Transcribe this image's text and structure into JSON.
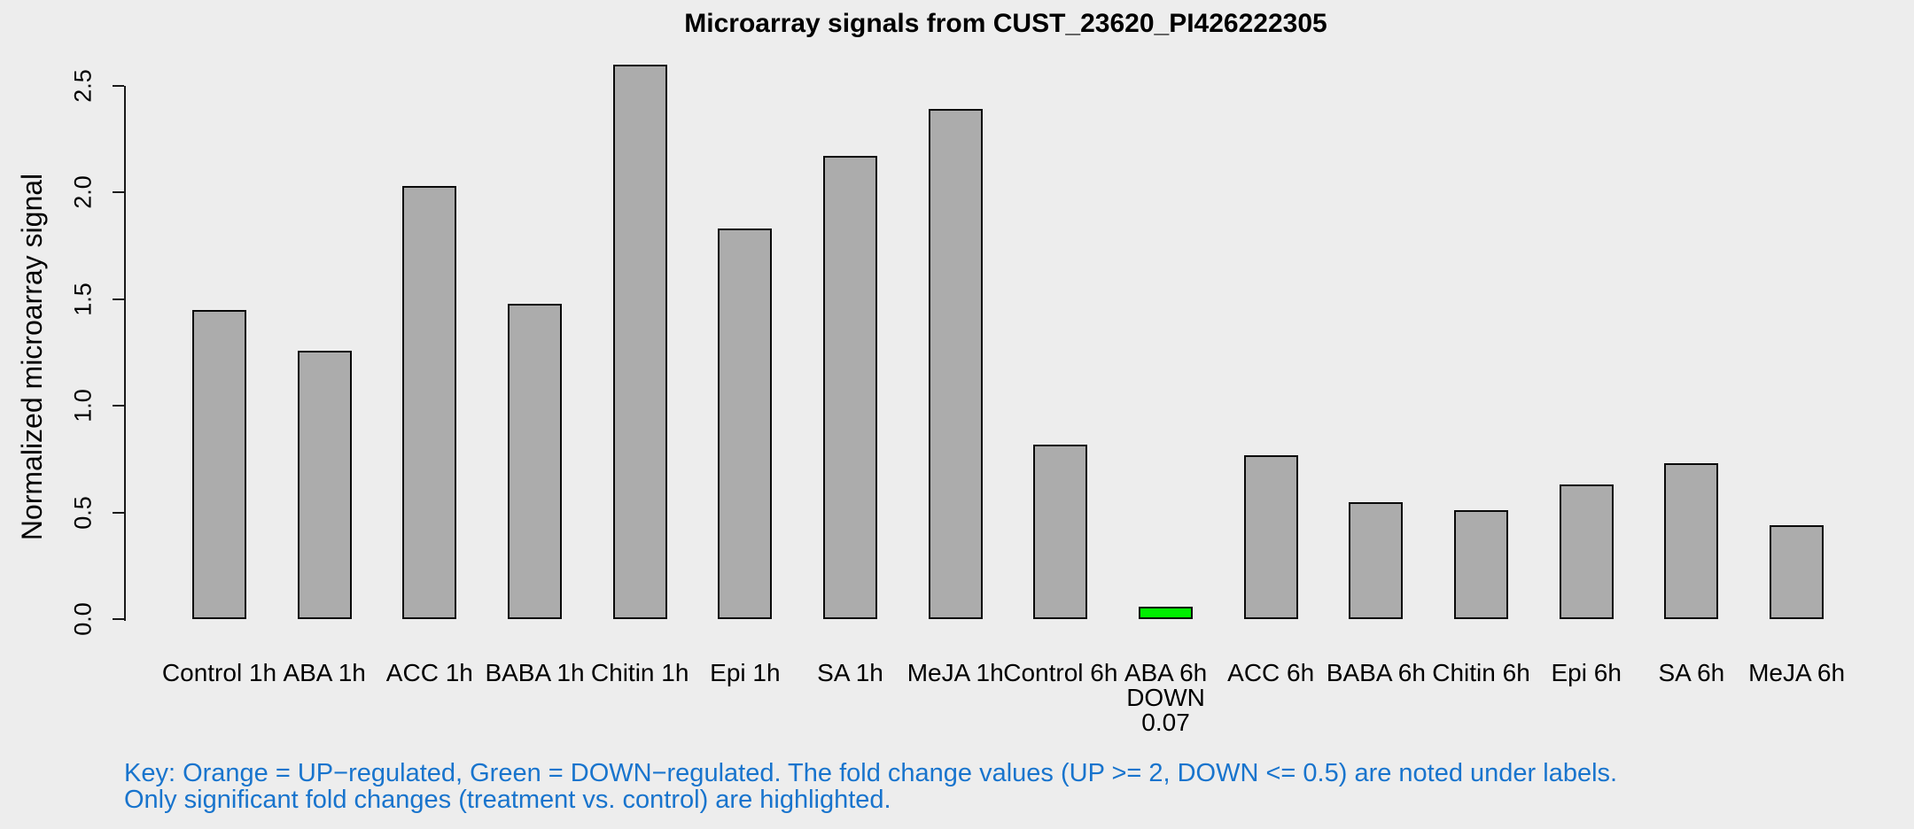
{
  "chart_data": {
    "type": "bar",
    "title": "Microarray signals from CUST_23620_PI426222305",
    "ylabel": "Normalized microarray signal",
    "xlabel": "",
    "categories": [
      "Control 1h",
      "ABA 1h",
      "ACC 1h",
      "BABA 1h",
      "Chitin 1h",
      "Epi 1h",
      "SA 1h",
      "MeJA 1h",
      "Control 6h",
      "ABA 6h",
      "ACC 6h",
      "BABA 6h",
      "Chitin 6h",
      "Epi 6h",
      "SA 6h",
      "MeJA 6h"
    ],
    "values": [
      1.45,
      1.26,
      2.03,
      1.48,
      2.6,
      1.83,
      2.17,
      2.39,
      0.82,
      0.06,
      0.77,
      0.55,
      0.51,
      0.63,
      0.73,
      0.44
    ],
    "ytick_labels": [
      "0.0",
      "0.5",
      "1.0",
      "1.5",
      "2.0",
      "2.5"
    ],
    "ylim": [
      0,
      2.6
    ],
    "grid": "off",
    "legend": "none",
    "highlights": [
      {
        "index": 9,
        "direction": "DOWN",
        "fold_change": "0.07",
        "color": "#00EE00"
      }
    ]
  },
  "key": {
    "line1": "Key: Orange = UP−regulated, Green = DOWN−regulated. The fold change values (UP >= 2, DOWN <= 0.5) are noted under labels.",
    "line2": "Only significant fold changes (treatment vs. control) are highlighted."
  },
  "colors": {
    "background": "#EDEDED",
    "bar_fill": "#ACACAC",
    "bar_border": "#0A0A0A",
    "down_highlight": "#00EE00",
    "axis": "#1A1A1A",
    "key_text": "#1874CD",
    "text": "#000000"
  }
}
